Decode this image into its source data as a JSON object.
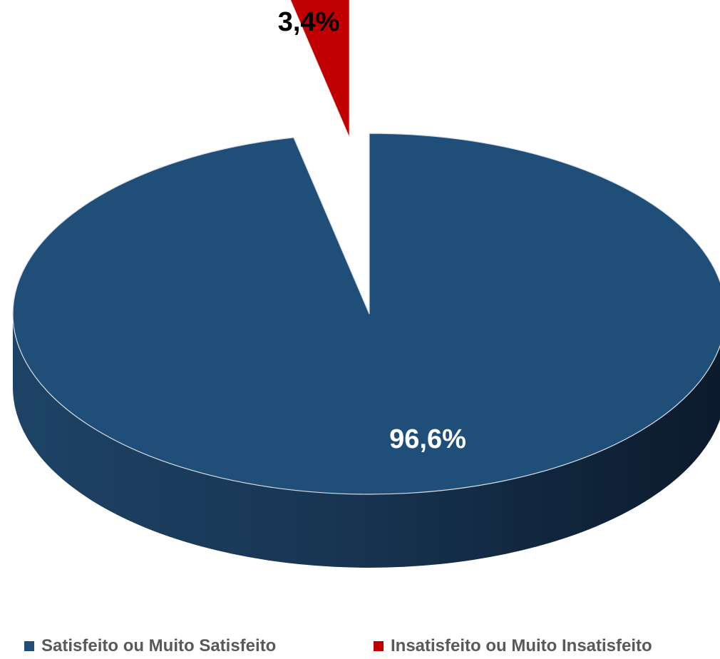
{
  "chart_data": {
    "type": "pie",
    "three_d": true,
    "legend_position": "bottom",
    "series": [
      {
        "slices": [
          {
            "label": "Satisfeito ou Muito Satisfeito",
            "value": 96.6,
            "data_label": "96,6%",
            "color": "#1F4E79"
          },
          {
            "label": "Insatisfeito ou Muito Insatisfeito",
            "value": 3.4,
            "data_label": "3,4%",
            "color": "#C00000",
            "exploded": true
          }
        ]
      }
    ]
  }
}
